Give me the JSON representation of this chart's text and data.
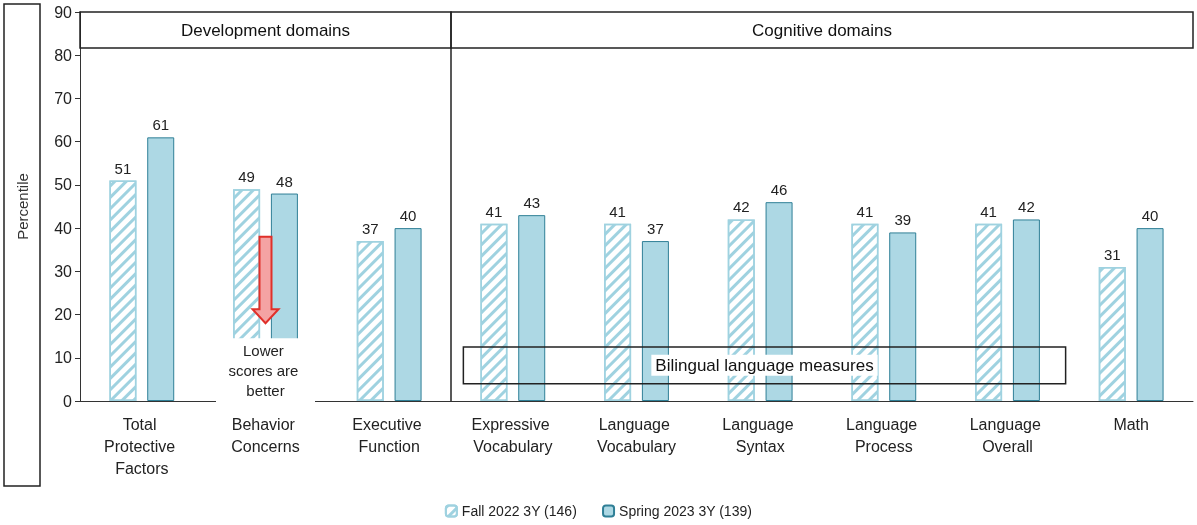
{
  "chart_data": {
    "type": "bar",
    "ylabel": "Percentile",
    "categories": [
      "Total Protective Factors",
      "Behavior Concerns",
      "Executive Function",
      "Expressive Vocabulary",
      "Language Vocabulary",
      "Language Syntax",
      "Language Process",
      "Language Overall",
      "Math"
    ],
    "series": [
      {
        "name": "Fall 2022 3Y (146)",
        "color": "#9fd2e0",
        "values": [
          51,
          49,
          37,
          41,
          41,
          42,
          41,
          41,
          31
        ]
      },
      {
        "name": "Spring 2023 3Y (139)",
        "color": "#add8e4",
        "values": [
          61,
          48,
          40,
          43,
          37,
          46,
          39,
          42,
          40
        ]
      }
    ],
    "ylim": [
      0,
      90
    ],
    "yticks": [
      0,
      10,
      20,
      30,
      40,
      50,
      60,
      70,
      80,
      90
    ],
    "grid": false,
    "legend": "bottom",
    "data_labels": true,
    "annotations": [
      "Development domains",
      "Cognitive domains",
      "Lower scores are better",
      "Bilingual language measures"
    ]
  }
}
